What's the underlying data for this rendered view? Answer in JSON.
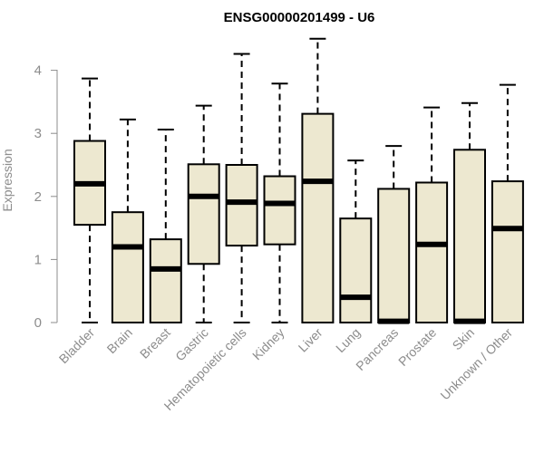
{
  "chart_data": {
    "type": "boxplot",
    "title": "ENSG00000201499 - U6",
    "xlabel": "",
    "ylabel": "Expression",
    "ylim": [
      0,
      4.5
    ],
    "yticks": [
      "0",
      "1",
      "2",
      "3",
      "4"
    ],
    "grid": false,
    "box_color": "#ede8d0",
    "categories": [
      "Bladder",
      "Brain",
      "Breast",
      "Gastric",
      "Hematopoietic cells",
      "Kidney",
      "Liver",
      "Lung",
      "Pancreas",
      "Prostate",
      "Skin",
      "Unknown / Other"
    ],
    "boxes": [
      {
        "min": 0,
        "q1": 1.55,
        "median": 2.2,
        "q3": 2.88,
        "max": 3.87
      },
      {
        "min": 0,
        "q1": 0,
        "median": 1.2,
        "q3": 1.75,
        "max": 3.22
      },
      {
        "min": 0,
        "q1": 0,
        "median": 0.85,
        "q3": 1.32,
        "max": 3.06
      },
      {
        "min": 0,
        "q1": 0.93,
        "median": 2.0,
        "q3": 2.51,
        "max": 3.44
      },
      {
        "min": 0,
        "q1": 1.22,
        "median": 1.91,
        "q3": 2.5,
        "max": 4.26
      },
      {
        "min": 0,
        "q1": 1.24,
        "median": 1.89,
        "q3": 2.32,
        "max": 3.79
      },
      {
        "min": 0,
        "q1": 0,
        "median": 2.24,
        "q3": 3.31,
        "max": 4.5
      },
      {
        "min": 0,
        "q1": 0,
        "median": 0.4,
        "q3": 1.65,
        "max": 2.57
      },
      {
        "min": 0,
        "q1": 0,
        "median": 0.02,
        "q3": 2.12,
        "max": 2.8
      },
      {
        "min": 0,
        "q1": 0,
        "median": 1.24,
        "q3": 2.22,
        "max": 3.41
      },
      {
        "min": 0,
        "q1": 0,
        "median": 0.02,
        "q3": 2.74,
        "max": 3.48
      },
      {
        "min": 0,
        "q1": 0,
        "median": 1.49,
        "q3": 2.24,
        "max": 3.77
      }
    ]
  }
}
